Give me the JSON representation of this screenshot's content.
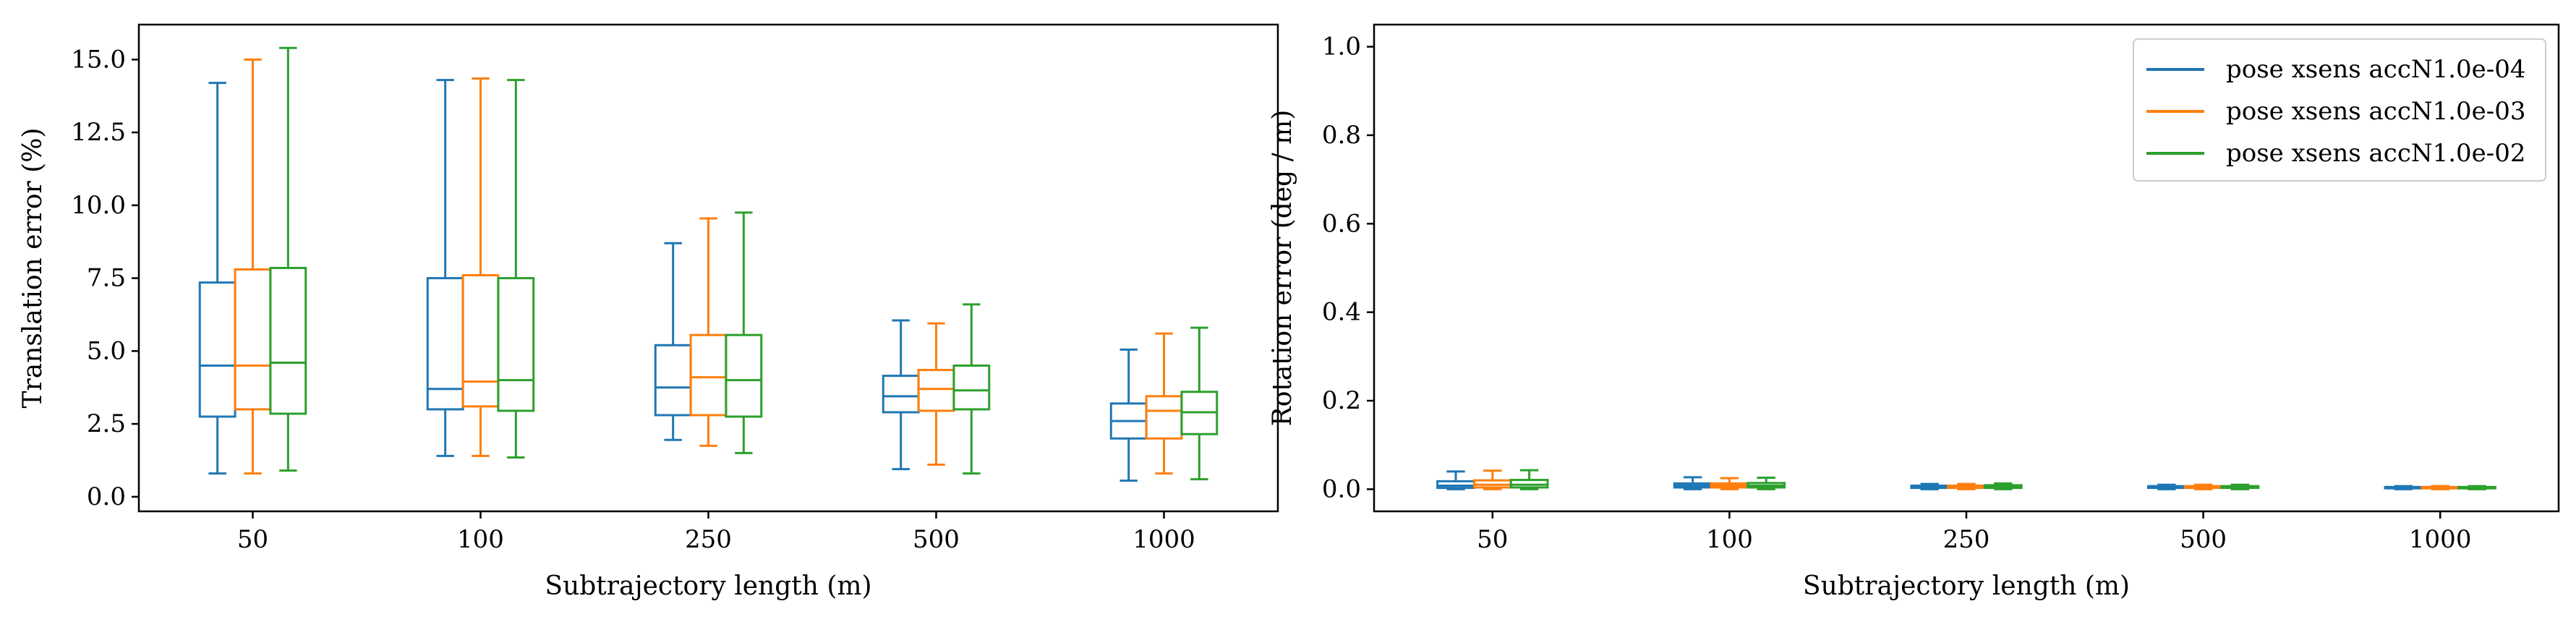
{
  "chart_data": [
    {
      "type": "box",
      "xlabel": "Subtrajectory length (m)",
      "ylabel": "Translation error (%)",
      "categories": [
        "50",
        "100",
        "250",
        "500",
        "1000"
      ],
      "ylim": [
        -0.5,
        16.2
      ],
      "yticks": [
        0.0,
        2.5,
        5.0,
        7.5,
        10.0,
        12.5,
        15.0
      ],
      "ytick_labels": [
        "0.0",
        "2.5",
        "5.0",
        "7.5",
        "10.0",
        "12.5",
        "15.0"
      ],
      "grid": false,
      "series": [
        {
          "name": "pose xsens accN1.0e-04",
          "color": "#1f77b4",
          "boxes": [
            {
              "whislo": 0.8,
              "q1": 2.75,
              "med": 4.5,
              "q3": 7.35,
              "whishi": 14.2
            },
            {
              "whislo": 1.4,
              "q1": 3.0,
              "med": 3.7,
              "q3": 7.5,
              "whishi": 14.3
            },
            {
              "whislo": 1.95,
              "q1": 2.8,
              "med": 3.75,
              "q3": 5.2,
              "whishi": 8.7
            },
            {
              "whislo": 0.95,
              "q1": 2.9,
              "med": 3.45,
              "q3": 4.15,
              "whishi": 6.05
            },
            {
              "whislo": 0.55,
              "q1": 2.0,
              "med": 2.6,
              "q3": 3.2,
              "whishi": 5.05
            }
          ]
        },
        {
          "name": "pose xsens accN1.0e-03",
          "color": "#ff7f0e",
          "boxes": [
            {
              "whislo": 0.8,
              "q1": 3.0,
              "med": 4.5,
              "q3": 7.8,
              "whishi": 15.0
            },
            {
              "whislo": 1.4,
              "q1": 3.1,
              "med": 3.95,
              "q3": 7.6,
              "whishi": 14.35
            },
            {
              "whislo": 1.75,
              "q1": 2.8,
              "med": 4.1,
              "q3": 5.55,
              "whishi": 9.55
            },
            {
              "whislo": 1.1,
              "q1": 2.95,
              "med": 3.7,
              "q3": 4.35,
              "whishi": 5.95
            },
            {
              "whislo": 0.8,
              "q1": 2.0,
              "med": 2.95,
              "q3": 3.45,
              "whishi": 5.6
            }
          ]
        },
        {
          "name": "pose xsens accN1.0e-02",
          "color": "#2ca02c",
          "boxes": [
            {
              "whislo": 0.9,
              "q1": 2.85,
              "med": 4.6,
              "q3": 7.85,
              "whishi": 15.4
            },
            {
              "whislo": 1.35,
              "q1": 2.95,
              "med": 4.0,
              "q3": 7.5,
              "whishi": 14.3
            },
            {
              "whislo": 1.5,
              "q1": 2.75,
              "med": 4.0,
              "q3": 5.55,
              "whishi": 9.75
            },
            {
              "whislo": 0.8,
              "q1": 3.0,
              "med": 3.65,
              "q3": 4.5,
              "whishi": 6.6
            },
            {
              "whislo": 0.6,
              "q1": 2.15,
              "med": 2.9,
              "q3": 3.6,
              "whishi": 5.8
            }
          ]
        }
      ]
    },
    {
      "type": "box",
      "xlabel": "Subtrajectory length (m)",
      "ylabel": "Rotation error (deg / m)",
      "categories": [
        "50",
        "100",
        "250",
        "500",
        "1000"
      ],
      "ylim": [
        -0.05,
        1.05
      ],
      "yticks": [
        0.0,
        0.2,
        0.4,
        0.6,
        0.8,
        1.0
      ],
      "ytick_labels": [
        "0.0",
        "0.2",
        "0.4",
        "0.6",
        "0.8",
        "1.0"
      ],
      "grid": false,
      "legend_position": "top-right",
      "series": [
        {
          "name": "pose xsens accN1.0e-04",
          "color": "#1f77b4",
          "boxes": [
            {
              "whislo": 0.0,
              "q1": 0.003,
              "med": 0.008,
              "q3": 0.018,
              "whishi": 0.04
            },
            {
              "whislo": 0.0,
              "q1": 0.004,
              "med": 0.008,
              "q3": 0.013,
              "whishi": 0.027
            },
            {
              "whislo": 0.0,
              "q1": 0.003,
              "med": 0.005,
              "q3": 0.008,
              "whishi": 0.012
            },
            {
              "whislo": 0.0,
              "q1": 0.003,
              "med": 0.005,
              "q3": 0.007,
              "whishi": 0.01
            },
            {
              "whislo": 0.0,
              "q1": 0.002,
              "med": 0.003,
              "q3": 0.005,
              "whishi": 0.007
            }
          ]
        },
        {
          "name": "pose xsens accN1.0e-03",
          "color": "#ff7f0e",
          "boxes": [
            {
              "whislo": 0.0,
              "q1": 0.004,
              "med": 0.01,
              "q3": 0.02,
              "whishi": 0.042
            },
            {
              "whislo": 0.0,
              "q1": 0.004,
              "med": 0.008,
              "q3": 0.013,
              "whishi": 0.025
            },
            {
              "whislo": 0.0,
              "q1": 0.003,
              "med": 0.005,
              "q3": 0.008,
              "whishi": 0.012
            },
            {
              "whislo": 0.0,
              "q1": 0.003,
              "med": 0.005,
              "q3": 0.007,
              "whishi": 0.01
            },
            {
              "whislo": 0.0,
              "q1": 0.002,
              "med": 0.003,
              "q3": 0.005,
              "whishi": 0.007
            }
          ]
        },
        {
          "name": "pose xsens accN1.0e-02",
          "color": "#2ca02c",
          "boxes": [
            {
              "whislo": 0.0,
              "q1": 0.004,
              "med": 0.01,
              "q3": 0.021,
              "whishi": 0.043
            },
            {
              "whislo": 0.0,
              "q1": 0.004,
              "med": 0.008,
              "q3": 0.014,
              "whishi": 0.026
            },
            {
              "whislo": 0.0,
              "q1": 0.003,
              "med": 0.005,
              "q3": 0.009,
              "whishi": 0.013
            },
            {
              "whislo": 0.0,
              "q1": 0.003,
              "med": 0.005,
              "q3": 0.007,
              "whishi": 0.01
            },
            {
              "whislo": 0.0,
              "q1": 0.002,
              "med": 0.003,
              "q3": 0.005,
              "whishi": 0.007
            }
          ]
        }
      ]
    }
  ]
}
